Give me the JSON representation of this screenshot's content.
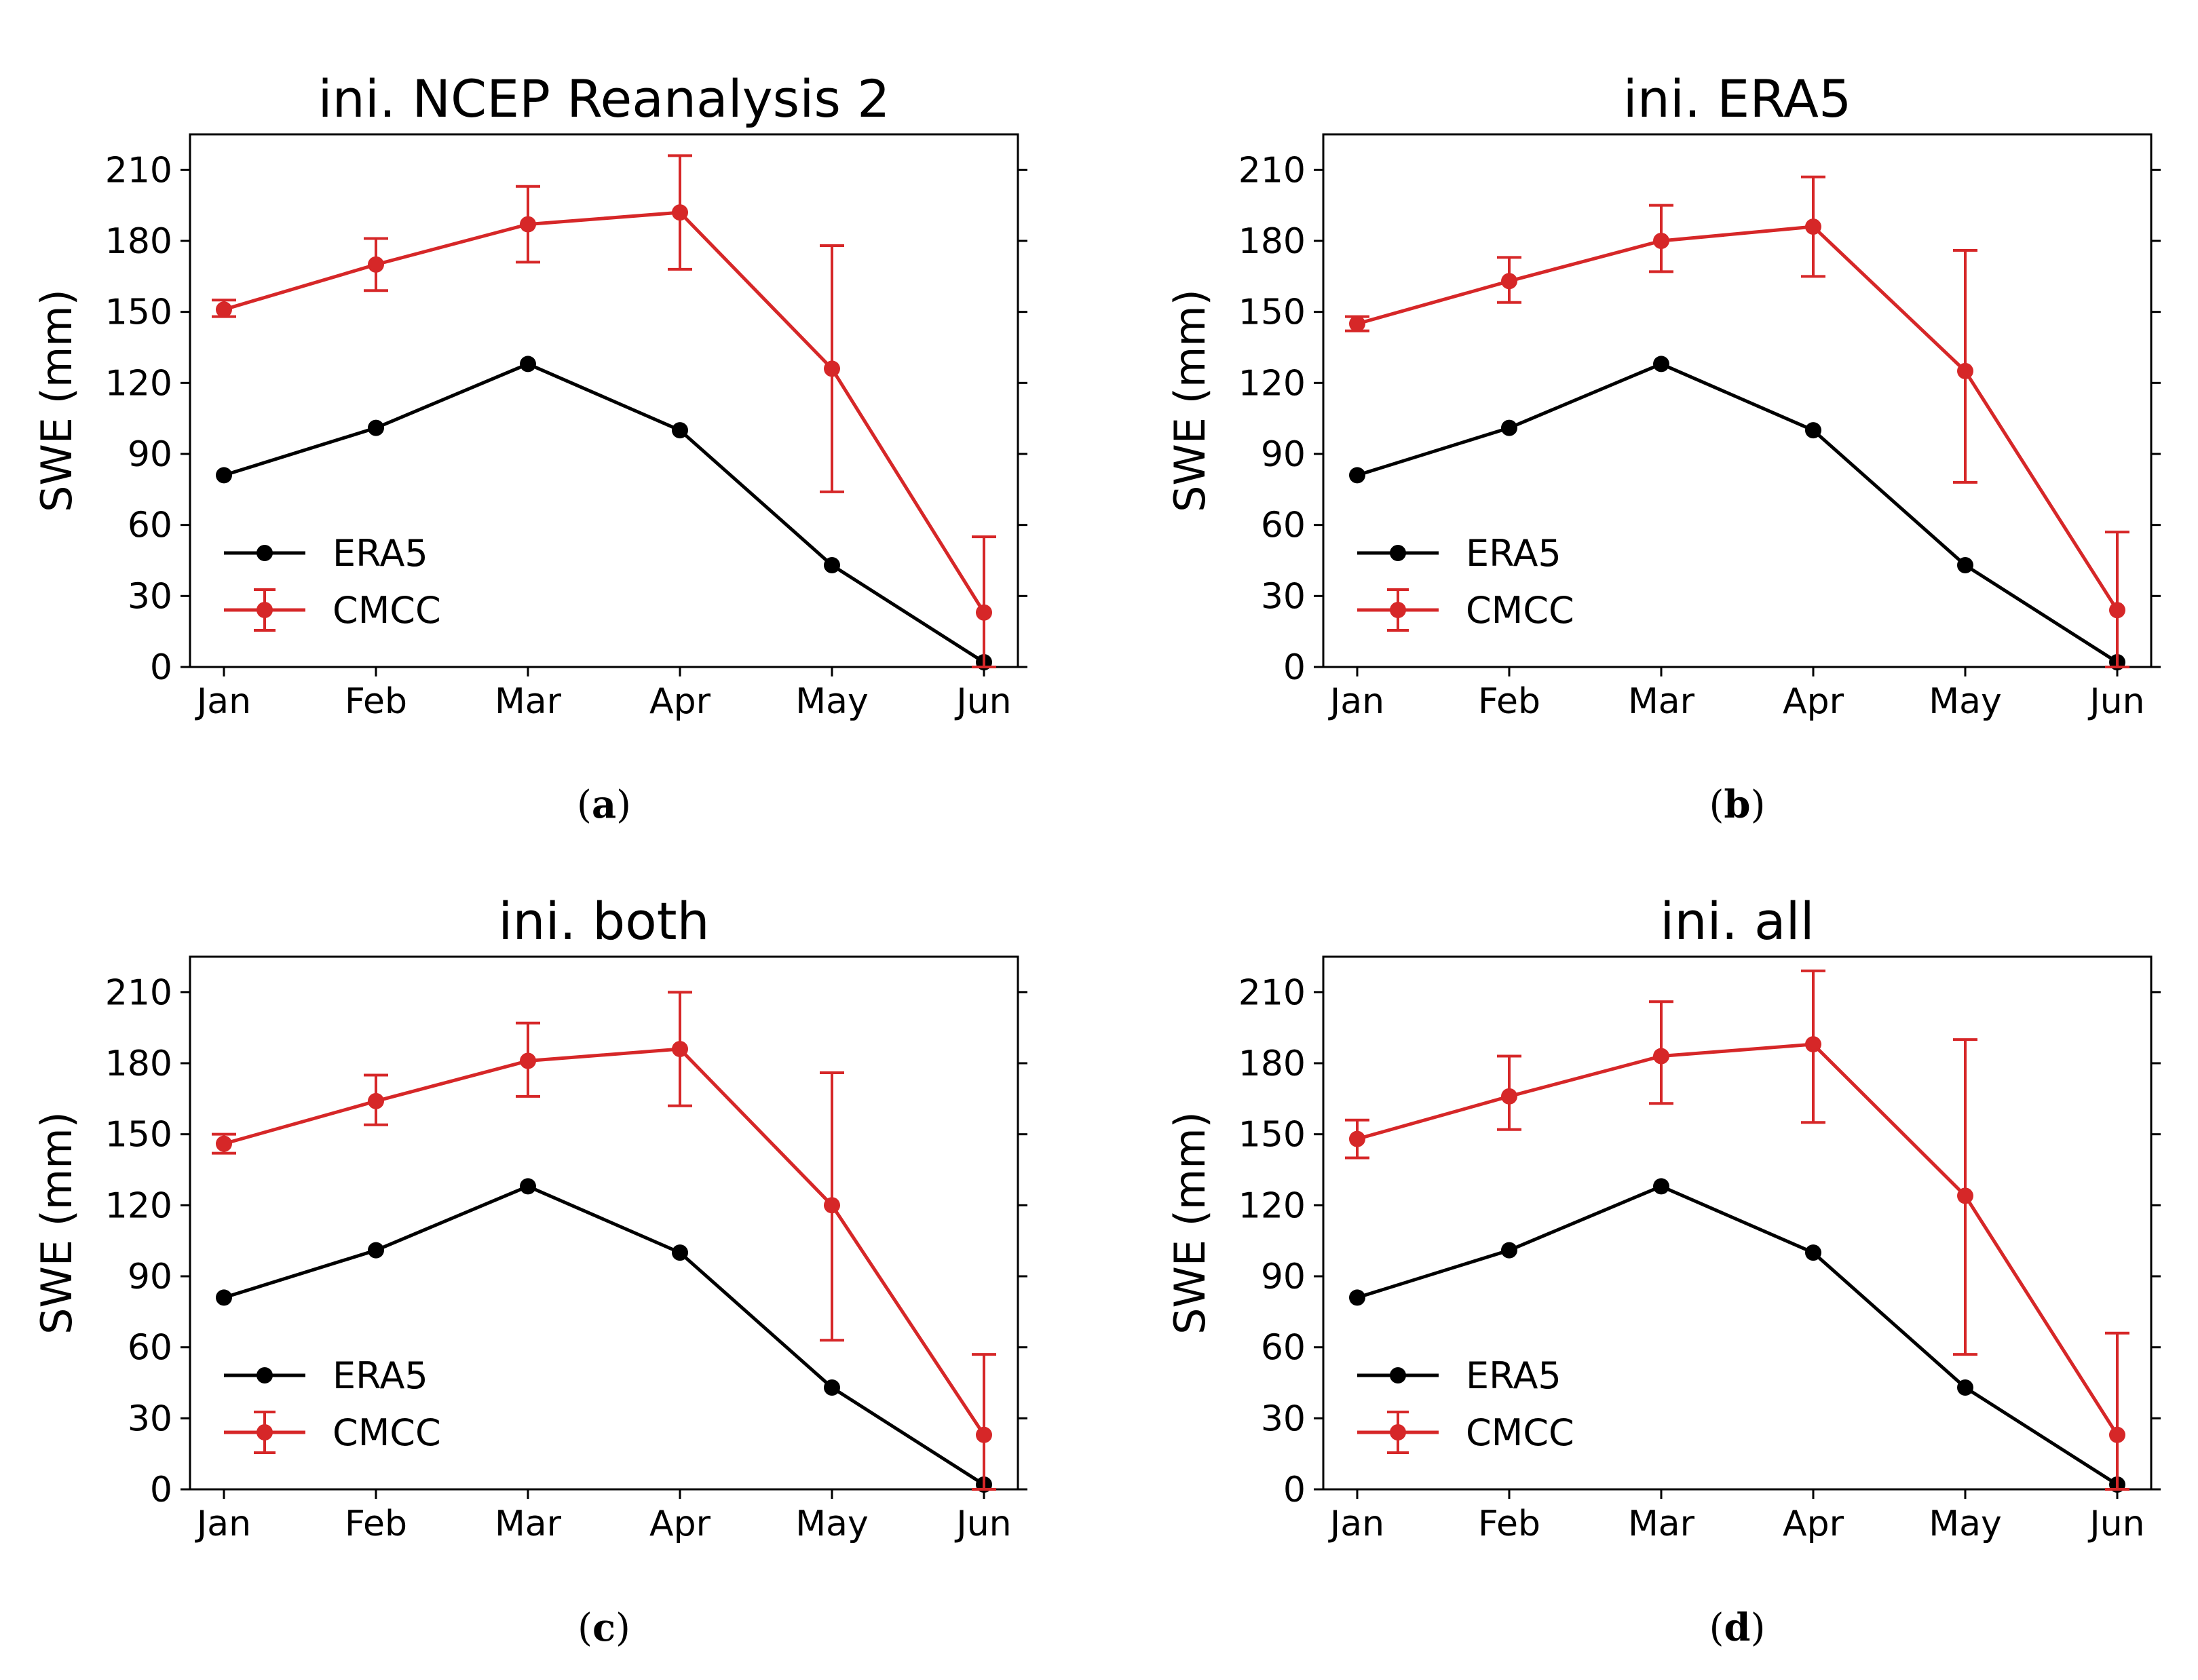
{
  "figure": {
    "panels": [
      {
        "label": "a"
      },
      {
        "label": "b"
      },
      {
        "label": "c"
      },
      {
        "label": "d"
      }
    ]
  },
  "colors": {
    "era5": "#000000",
    "cmcc": "#d62728"
  },
  "chart_data": [
    {
      "type": "line",
      "title": "ini. NCEP Reanalysis 2",
      "xlabel": "",
      "ylabel": "SWE (mm)",
      "categories": [
        "Jan",
        "Feb",
        "Mar",
        "Apr",
        "May",
        "Jun"
      ],
      "ylim": [
        0,
        225
      ],
      "yticks": [
        0,
        30,
        60,
        90,
        120,
        150,
        180,
        210
      ],
      "series": [
        {
          "name": "ERA5",
          "values": [
            81,
            101,
            128,
            100,
            43,
            2
          ]
        },
        {
          "name": "CMCC",
          "values": [
            151,
            170,
            187,
            192,
            126,
            23
          ],
          "err_low": [
            148,
            159,
            171,
            168,
            74,
            0
          ],
          "err_high": [
            155,
            181,
            203,
            216,
            178,
            55
          ]
        }
      ],
      "legend": "lower-left"
    },
    {
      "type": "line",
      "title": "ini. ERA5",
      "xlabel": "",
      "ylabel": "SWE (mm)",
      "categories": [
        "Jan",
        "Feb",
        "Mar",
        "Apr",
        "May",
        "Jun"
      ],
      "ylim": [
        0,
        225
      ],
      "yticks": [
        0,
        30,
        60,
        90,
        120,
        150,
        180,
        210
      ],
      "series": [
        {
          "name": "ERA5",
          "values": [
            81,
            101,
            128,
            100,
            43,
            2
          ]
        },
        {
          "name": "CMCC",
          "values": [
            145,
            163,
            180,
            186,
            125,
            24
          ],
          "err_low": [
            142,
            154,
            167,
            165,
            78,
            0
          ],
          "err_high": [
            148,
            173,
            195,
            207,
            176,
            57
          ]
        }
      ],
      "legend": "lower-left"
    },
    {
      "type": "line",
      "title": "ini. both",
      "xlabel": "",
      "ylabel": "SWE (mm)",
      "categories": [
        "Jan",
        "Feb",
        "Mar",
        "Apr",
        "May",
        "Jun"
      ],
      "ylim": [
        0,
        225
      ],
      "yticks": [
        0,
        30,
        60,
        90,
        120,
        150,
        180,
        210
      ],
      "series": [
        {
          "name": "ERA5",
          "values": [
            81,
            101,
            128,
            100,
            43,
            2
          ]
        },
        {
          "name": "CMCC",
          "values": [
            146,
            164,
            181,
            186,
            120,
            23
          ],
          "err_low": [
            142,
            154,
            166,
            162,
            63,
            0
          ],
          "err_high": [
            150,
            175,
            197,
            210,
            176,
            57
          ]
        }
      ],
      "legend": "lower-left"
    },
    {
      "type": "line",
      "title": "ini. all",
      "xlabel": "",
      "ylabel": "SWE (mm)",
      "categories": [
        "Jan",
        "Feb",
        "Mar",
        "Apr",
        "May",
        "Jun"
      ],
      "ylim": [
        0,
        225
      ],
      "yticks": [
        0,
        30,
        60,
        90,
        120,
        150,
        180,
        210
      ],
      "series": [
        {
          "name": "ERA5",
          "values": [
            81,
            101,
            128,
            100,
            43,
            2
          ]
        },
        {
          "name": "CMCC",
          "values": [
            148,
            166,
            183,
            188,
            124,
            23
          ],
          "err_low": [
            140,
            152,
            163,
            155,
            57,
            0
          ],
          "err_high": [
            156,
            183,
            206,
            219,
            190,
            66
          ]
        }
      ],
      "legend": "lower-left"
    }
  ]
}
